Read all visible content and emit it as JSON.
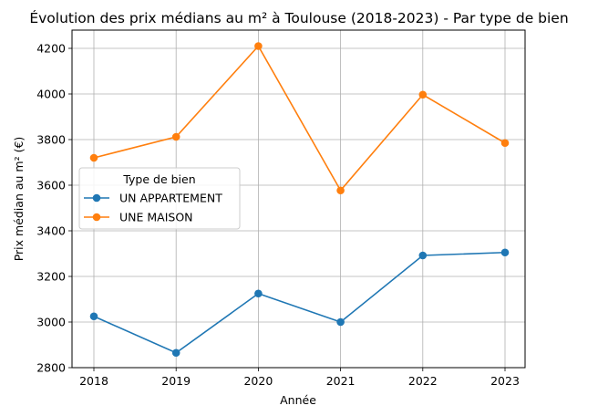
{
  "chart_data": {
    "type": "line",
    "title": "Évolution des prix médians au m² à Toulouse (2018-2023) - Par type de bien",
    "xlabel": "Année",
    "ylabel": "Prix médian au m² (€)",
    "x": [
      2018,
      2019,
      2020,
      2021,
      2022,
      2023
    ],
    "xticks": [
      "2018",
      "2019",
      "2020",
      "2021",
      "2022",
      "2023"
    ],
    "ylim": [
      2800,
      4280
    ],
    "yticks": [
      "2800",
      "3000",
      "3200",
      "3400",
      "3600",
      "3800",
      "4000",
      "4200"
    ],
    "grid": true,
    "legend": {
      "title": "Type de bien",
      "placement": "center-left"
    },
    "series": [
      {
        "name": "UN APPARTEMENT",
        "color": "#1f77b4",
        "values": [
          3025,
          2865,
          3125,
          3000,
          3292,
          3305
        ]
      },
      {
        "name": "UNE MAISON",
        "color": "#ff7f0e",
        "values": [
          3720,
          3812,
          4210,
          3577,
          3997,
          3785
        ]
      }
    ]
  }
}
